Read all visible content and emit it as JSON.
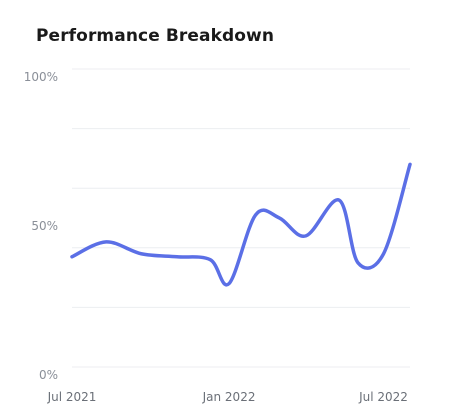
{
  "card": {
    "title": "Performance Breakdown"
  },
  "colors": {
    "line": "#5b6fe6",
    "grid": "#eceef1",
    "tick": "#8a8f98"
  },
  "chart_data": {
    "type": "line",
    "title": "Performance Breakdown",
    "xlabel": "",
    "ylabel": "",
    "ylim": [
      0,
      100
    ],
    "grid": true,
    "y_ticks": [
      {
        "value": 0,
        "label": "0%"
      },
      {
        "value": 50,
        "label": "50%"
      },
      {
        "value": 100,
        "label": "100%"
      }
    ],
    "x_ticks": [
      {
        "value": "2021-07",
        "label": "Jul 2021"
      },
      {
        "value": "2022-01",
        "label": "Jan 2022"
      },
      {
        "value": "2022-07",
        "label": "Jul 2022"
      }
    ],
    "series": [
      {
        "name": "",
        "x": [
          "2021-07-01",
          "2021-08-10",
          "2021-09-20",
          "2021-11-01",
          "2021-12-10",
          "2022-01-01",
          "2022-02-01",
          "2022-03-01",
          "2022-04-01",
          "2022-05-10",
          "2022-06-01",
          "2022-07-01",
          "2022-08-01"
        ],
        "values": [
          37,
          42,
          38,
          37,
          36,
          28,
          51,
          50,
          44,
          56,
          35,
          38,
          68
        ]
      }
    ]
  }
}
